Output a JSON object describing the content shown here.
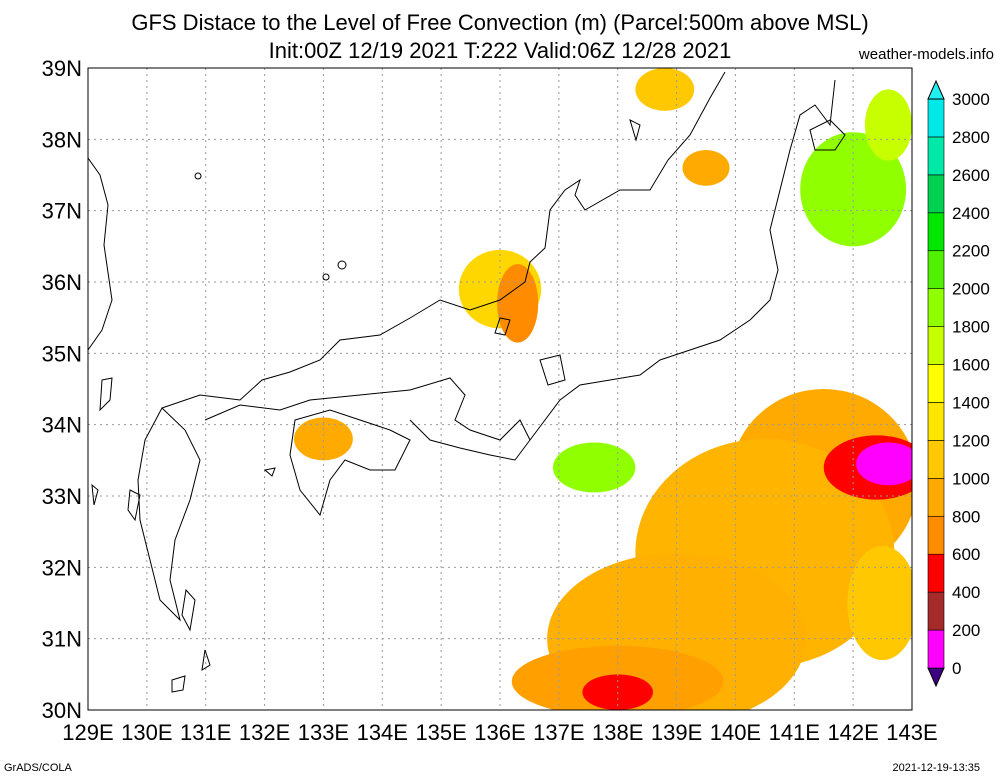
{
  "title": {
    "line1": "GFS Distace to the Level of Free Convection (m) (Parcel:500m above MSL)",
    "line2": "Init:00Z 12/19 2021 T:222 Valid:06Z 12/28 2021"
  },
  "source": "weather-models.info",
  "footer": {
    "left": "GrADS/COLA",
    "right": "2021-12-19-13:35"
  },
  "map": {
    "lon_range": [
      129,
      143
    ],
    "lat_range": [
      30,
      39
    ],
    "grid": "dotted",
    "lon_ticks": [
      "129E",
      "130E",
      "131E",
      "132E",
      "133E",
      "134E",
      "135E",
      "136E",
      "137E",
      "138E",
      "139E",
      "140E",
      "141E",
      "142E",
      "143E"
    ],
    "lat_ticks": [
      "30N",
      "31N",
      "32N",
      "33N",
      "34N",
      "35N",
      "36N",
      "37N",
      "38N",
      "39N"
    ]
  },
  "colorbar": {
    "levels": [
      "0",
      "200",
      "400",
      "600",
      "800",
      "1000",
      "1200",
      "1400",
      "1600",
      "1800",
      "2000",
      "2200",
      "2400",
      "2600",
      "2800",
      "3000"
    ],
    "colors": [
      "#3d0080",
      "#ff00ff",
      "#a52a2a",
      "#ff0000",
      "#ff8c00",
      "#ffaa00",
      "#ffc800",
      "#ffe600",
      "#ffff00",
      "#c8ff00",
      "#90ff00",
      "#50f000",
      "#00e600",
      "#00d050",
      "#00e8a8",
      "#00e8e8",
      "#20f0f0"
    ]
  },
  "shading": [
    {
      "lon": 141.5,
      "lat": 33.2,
      "rx": 1.6,
      "ry": 1.3,
      "color": "#ffaa00"
    },
    {
      "lon": 140.5,
      "lat": 32.2,
      "rx": 2.2,
      "ry": 1.6,
      "color": "#ffb400"
    },
    {
      "lon": 139.0,
      "lat": 31.0,
      "rx": 2.2,
      "ry": 1.2,
      "color": "#ffb000"
    },
    {
      "lon": 138.0,
      "lat": 30.4,
      "rx": 1.8,
      "ry": 0.5,
      "color": "#ffa000"
    },
    {
      "lon": 142.5,
      "lat": 31.5,
      "rx": 0.6,
      "ry": 0.8,
      "color": "#ffc800"
    },
    {
      "lon": 142.4,
      "lat": 33.4,
      "rx": 0.9,
      "ry": 0.45,
      "color": "#ff0000"
    },
    {
      "lon": 142.6,
      "lat": 33.45,
      "rx": 0.55,
      "ry": 0.3,
      "color": "#ff00ff"
    },
    {
      "lon": 138.0,
      "lat": 30.25,
      "rx": 0.6,
      "ry": 0.25,
      "color": "#ff0000"
    },
    {
      "lon": 136.0,
      "lat": 35.9,
      "rx": 0.7,
      "ry": 0.55,
      "color": "#ffd700"
    },
    {
      "lon": 136.3,
      "lat": 35.7,
      "rx": 0.35,
      "ry": 0.55,
      "color": "#ff8c00"
    },
    {
      "lon": 133.0,
      "lat": 33.8,
      "rx": 0.5,
      "ry": 0.3,
      "color": "#ffaa00"
    },
    {
      "lon": 137.6,
      "lat": 33.4,
      "rx": 0.7,
      "ry": 0.35,
      "color": "#90ff00"
    },
    {
      "lon": 142.0,
      "lat": 37.3,
      "rx": 0.9,
      "ry": 0.8,
      "color": "#90ff00"
    },
    {
      "lon": 142.6,
      "lat": 38.2,
      "rx": 0.4,
      "ry": 0.5,
      "color": "#c8ff00"
    },
    {
      "lon": 138.8,
      "lat": 38.7,
      "rx": 0.5,
      "ry": 0.3,
      "color": "#ffc800"
    },
    {
      "lon": 139.5,
      "lat": 37.6,
      "rx": 0.4,
      "ry": 0.25,
      "color": "#ffaa00"
    }
  ]
}
